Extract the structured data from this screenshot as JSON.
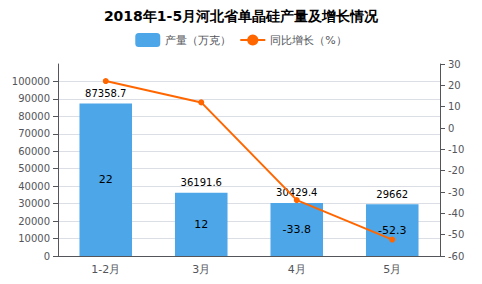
{
  "chart_data": {
    "type": "bar",
    "title": "2018年1-5月河北省单晶硅产量及增长情况",
    "categories": [
      "1-2月",
      "3月",
      "4月",
      "5月"
    ],
    "series": [
      {
        "name": "产量（万克）",
        "type": "bar",
        "color": "#4DA6E8",
        "values": [
          87358.7,
          36191.6,
          30429.4,
          29662
        ],
        "data_labels": true
      },
      {
        "name": "同比增长（%）",
        "type": "line",
        "color": "#FF6600",
        "marker": "circle",
        "axis": "y2",
        "values": [
          22,
          12,
          -33.8,
          -52.3
        ]
      }
    ],
    "annotations": [
      "22",
      "12",
      "-33.8",
      "-52.3"
    ],
    "ylim": [
      0,
      110000
    ],
    "yticks": [
      0,
      10000,
      20000,
      30000,
      40000,
      50000,
      60000,
      70000,
      80000,
      90000,
      100000
    ],
    "y2lim": [
      -60,
      30
    ],
    "y2ticks": [
      -60,
      -50,
      -40,
      -30,
      -20,
      -10,
      0,
      10,
      20,
      30
    ],
    "grid": true,
    "legend": "top"
  }
}
